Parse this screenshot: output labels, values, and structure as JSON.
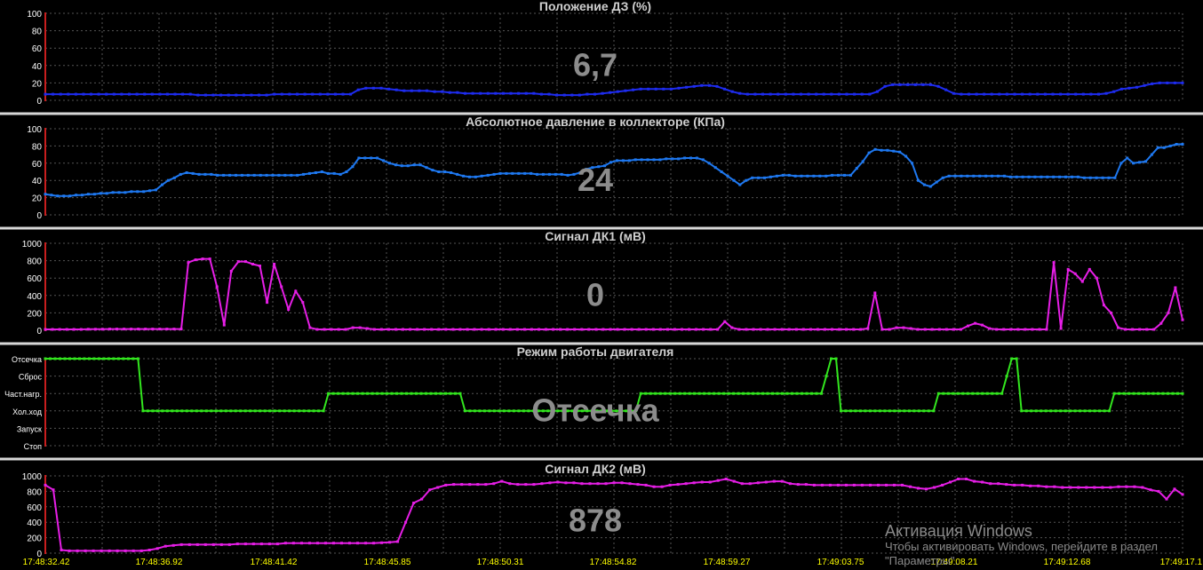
{
  "colors": {
    "background": "#000000",
    "separator": "#d8d8d8",
    "grid": "#555555",
    "axis": "#c81e1e",
    "title": "#cfcfcf",
    "big_value": "#8c8c8c",
    "tick_text": "#ffffff",
    "time_text": "#ffff00"
  },
  "time_labels": [
    "17:48:32.42",
    "17:48:36.92",
    "17:48:41.42",
    "17:48:45.85",
    "17:48:50.31",
    "17:48:54.82",
    "17:48:59.27",
    "17:49:03.75",
    "17:49:08.21",
    "17:49:12.68",
    "17:49:17.1"
  ],
  "chart_data": [
    {
      "type": "line",
      "title": "Положение ДЗ  (%)",
      "big_value": "6,7",
      "color": "#1e2cf0",
      "ylim": [
        0,
        100
      ],
      "yticks": [
        "0",
        "20",
        "40",
        "60",
        "80",
        "100"
      ],
      "grid": true,
      "values": [
        7,
        7,
        7,
        7,
        7,
        7,
        7,
        7,
        7,
        7,
        7,
        7,
        7,
        7,
        7,
        7,
        7,
        7,
        7,
        7,
        6,
        6,
        6,
        6,
        6,
        6,
        6,
        6,
        6,
        6,
        7,
        7,
        7,
        7,
        7,
        7,
        7,
        7,
        7,
        7,
        7,
        12,
        14,
        14,
        14,
        13,
        12,
        11,
        11,
        11,
        11,
        10,
        10,
        9,
        9,
        8,
        8,
        8,
        8,
        8,
        8,
        8,
        8,
        8,
        8,
        7,
        7,
        6,
        6,
        6,
        6,
        7,
        7,
        8,
        9,
        10,
        11,
        12,
        13,
        13,
        13,
        13,
        13,
        14,
        15,
        16,
        17,
        17,
        16,
        13,
        10,
        8,
        7,
        7,
        7,
        7,
        7,
        7,
        7,
        7,
        7,
        7,
        7,
        7,
        7,
        7,
        7,
        7,
        7,
        10,
        16,
        18,
        18,
        18,
        18,
        18,
        18,
        16,
        12,
        8,
        7,
        7,
        7,
        7,
        7,
        7,
        7,
        7,
        7,
        7,
        7,
        7,
        7,
        7,
        7,
        7,
        7,
        7,
        7,
        8,
        10,
        13,
        14,
        15,
        17,
        19,
        20,
        20,
        20,
        20
      ]
    },
    {
      "type": "line",
      "title": "Абсолютное давление в коллекторе  (КПа)",
      "big_value": "24",
      "color": "#1e78f0",
      "ylim": [
        0,
        100
      ],
      "yticks": [
        "0",
        "20",
        "40",
        "60",
        "80",
        "100"
      ],
      "grid": true,
      "values": [
        24,
        23,
        22,
        22,
        22,
        23,
        23,
        24,
        24,
        25,
        25,
        26,
        26,
        26,
        27,
        27,
        27,
        28,
        29,
        35,
        40,
        43,
        47,
        49,
        48,
        47,
        47,
        47,
        46,
        46,
        46,
        46,
        46,
        46,
        46,
        46,
        46,
        46,
        46,
        46,
        46,
        46,
        47,
        48,
        49,
        50,
        48,
        48,
        47,
        50,
        56,
        66,
        66,
        66,
        66,
        63,
        60,
        58,
        57,
        57,
        58,
        58,
        55,
        52,
        50,
        50,
        49,
        47,
        45,
        44,
        44,
        45,
        46,
        47,
        48,
        48,
        48,
        48,
        48,
        48,
        47,
        47,
        47,
        47,
        47,
        46,
        47,
        49,
        53,
        55,
        56,
        57,
        61,
        63,
        63,
        63,
        64,
        64,
        64,
        64,
        64,
        65,
        65,
        65,
        66,
        66,
        66,
        64,
        60,
        55,
        50,
        45,
        40,
        35,
        40,
        43,
        43,
        43,
        44,
        45,
        46,
        46,
        45,
        45,
        45,
        45,
        45,
        45,
        46,
        46,
        46,
        46,
        54,
        62,
        72,
        76,
        75,
        75,
        74,
        73,
        68,
        60,
        40,
        35,
        33,
        38,
        43,
        45,
        45,
        45,
        45,
        45,
        45,
        45,
        45,
        45,
        45,
        44,
        44,
        44,
        44,
        44,
        44,
        44,
        44,
        44,
        44,
        44,
        44,
        43,
        43,
        43,
        43,
        43,
        43,
        60,
        66,
        60,
        61,
        62,
        70,
        78,
        78,
        80,
        82,
        82
      ]
    },
    {
      "type": "line",
      "title": "Сигнал ДК1  (мВ)",
      "big_value": "0",
      "color": "#e61ee6",
      "ylim": [
        0,
        1000
      ],
      "yticks": [
        "0",
        "200",
        "400",
        "600",
        "800",
        "1000"
      ],
      "grid": true,
      "values": [
        10,
        10,
        10,
        10,
        10,
        10,
        12,
        12,
        12,
        14,
        14,
        14,
        14,
        14,
        14,
        14,
        14,
        14,
        14,
        14,
        780,
        810,
        820,
        820,
        500,
        60,
        680,
        790,
        790,
        760,
        740,
        320,
        760,
        500,
        240,
        450,
        320,
        30,
        10,
        10,
        10,
        10,
        10,
        30,
        30,
        20,
        10,
        10,
        10,
        10,
        10,
        10,
        10,
        10,
        10,
        10,
        10,
        10,
        10,
        10,
        10,
        10,
        10,
        10,
        10,
        10,
        10,
        10,
        10,
        10,
        10,
        10,
        10,
        10,
        10,
        10,
        10,
        10,
        10,
        10,
        10,
        10,
        10,
        10,
        10,
        10,
        10,
        10,
        10,
        10,
        10,
        10,
        10,
        10,
        10,
        100,
        30,
        10,
        10,
        10,
        10,
        10,
        10,
        10,
        10,
        10,
        10,
        10,
        10,
        10,
        10,
        10,
        10,
        10,
        10,
        20,
        430,
        10,
        10,
        30,
        30,
        20,
        10,
        10,
        10,
        10,
        10,
        10,
        10,
        50,
        80,
        60,
        20,
        10,
        10,
        10,
        10,
        10,
        10,
        10,
        10,
        780,
        20,
        700,
        650,
        560,
        700,
        600,
        290,
        200,
        30,
        10,
        10,
        10,
        10,
        10,
        80,
        200,
        490,
        120
      ]
    },
    {
      "type": "line",
      "title": "Режим работы двигателя",
      "big_value": "Отсечка",
      "color": "#32e61e",
      "ylim": [
        0,
        5
      ],
      "yticks": [
        "Стоп",
        "Запуск",
        "Хол.ход",
        "Част.нагр.",
        "Сброс",
        "Отсечка"
      ],
      "grid": true,
      "values": [
        5,
        5,
        5,
        5,
        5,
        5,
        5,
        5,
        5,
        5,
        5,
        5,
        5,
        5,
        5,
        5,
        5,
        5,
        5,
        5,
        2,
        2,
        2,
        2,
        2,
        2,
        2,
        2,
        2,
        2,
        2,
        2,
        2,
        2,
        2,
        2,
        2,
        2,
        2,
        2,
        2,
        2,
        2,
        2,
        2,
        2,
        2,
        2,
        2,
        2,
        2,
        2,
        2,
        2,
        2,
        2,
        2,
        2,
        3,
        3,
        3,
        3,
        3,
        3,
        3,
        3,
        3,
        3,
        3,
        3,
        3,
        3,
        3,
        3,
        3,
        3,
        3,
        3,
        3,
        3,
        3,
        3,
        3,
        3,
        3,
        3,
        2,
        2,
        2,
        2,
        2,
        2,
        2,
        2,
        2,
        2,
        2,
        2,
        2,
        2,
        2,
        2,
        2,
        2,
        2,
        2,
        2,
        2,
        2,
        2,
        2,
        2,
        2,
        2,
        2,
        2,
        2,
        2,
        2,
        2,
        2,
        2,
        3,
        3,
        3,
        3,
        3,
        3,
        3,
        3,
        3,
        3,
        3,
        3,
        3,
        3,
        3,
        3,
        3,
        3,
        3,
        3,
        3,
        3,
        3,
        3,
        3,
        3,
        3,
        3,
        3,
        3,
        3,
        3,
        3,
        3,
        3,
        3,
        3,
        3,
        4,
        5,
        5,
        2,
        2,
        2,
        2,
        2,
        2,
        2,
        2,
        2,
        2,
        2,
        2,
        2,
        2,
        2,
        2,
        2,
        2,
        2,
        2,
        3,
        3,
        3,
        3,
        3,
        3,
        3,
        3,
        3,
        3,
        3,
        3,
        3,
        3,
        4,
        5,
        5,
        2,
        2,
        2,
        2,
        2,
        2,
        2,
        2,
        2,
        2,
        2,
        2,
        2,
        2,
        2,
        2,
        2,
        2,
        2,
        3,
        3,
        3,
        3,
        3,
        3,
        3,
        3,
        3,
        3,
        3,
        3,
        3,
        3,
        3
      ]
    },
    {
      "type": "line",
      "title": "Сигнал ДК2  (мВ)",
      "big_value": "878",
      "color": "#e61ee6",
      "ylim": [
        0,
        1000
      ],
      "yticks": [
        "0",
        "200",
        "400",
        "600",
        "800",
        "1000"
      ],
      "grid": true,
      "values": [
        880,
        820,
        40,
        30,
        30,
        30,
        30,
        30,
        30,
        30,
        30,
        30,
        30,
        40,
        60,
        90,
        100,
        110,
        110,
        110,
        110,
        110,
        110,
        110,
        120,
        120,
        120,
        120,
        120,
        120,
        130,
        130,
        130,
        130,
        130,
        130,
        130,
        130,
        130,
        130,
        130,
        130,
        135,
        140,
        150,
        400,
        650,
        700,
        820,
        850,
        880,
        890,
        890,
        890,
        890,
        890,
        900,
        930,
        900,
        890,
        890,
        890,
        900,
        910,
        920,
        910,
        910,
        900,
        900,
        900,
        900,
        910,
        910,
        900,
        890,
        880,
        860,
        860,
        880,
        890,
        900,
        910,
        920,
        920,
        940,
        960,
        930,
        900,
        900,
        910,
        920,
        930,
        930,
        900,
        890,
        890,
        880,
        880,
        880,
        880,
        880,
        880,
        880,
        880,
        880,
        880,
        880,
        880,
        860,
        840,
        830,
        850,
        880,
        920,
        960,
        960,
        930,
        920,
        900,
        900,
        890,
        880,
        880,
        870,
        870,
        860,
        860,
        850,
        850,
        850,
        850,
        850,
        850,
        850,
        860,
        860,
        860,
        850,
        820,
        800,
        700,
        830,
        760
      ]
    }
  ],
  "watermark": {
    "title": "Активация Windows",
    "text": "Чтобы активировать Windows, перейдите в раздел \"Параметры\"."
  }
}
